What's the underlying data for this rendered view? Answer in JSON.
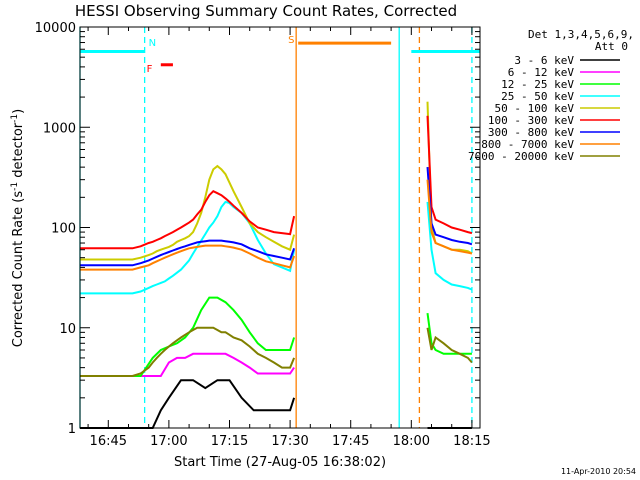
{
  "chart_data": {
    "type": "line",
    "title": "HESSI Observing Summary Count Rates, Corrected",
    "xlabel": "Start Time (27-Aug-05 16:38:02)",
    "ylabel": "Corrected Count Rate (s",
    "ylabel_exp1": "-1",
    "ylabel_mid": " detector",
    "ylabel_exp2": "-1",
    "ylabel_end": ")",
    "yscale": "log",
    "ylim": [
      1,
      10000
    ],
    "xlim_minutes": [
      0,
      99
    ],
    "x_ticks": [
      {
        "label": "16:45",
        "t": 7
      },
      {
        "label": "17:00",
        "t": 22
      },
      {
        "label": "17:15",
        "t": 37
      },
      {
        "label": "17:30",
        "t": 52
      },
      {
        "label": "17:45",
        "t": 67
      },
      {
        "label": "18:00",
        "t": 82
      },
      {
        "label": "18:15",
        "t": 97
      }
    ],
    "y_ticks": [
      {
        "label": "1",
        "v": 1
      },
      {
        "label": "10",
        "v": 10
      },
      {
        "label": "100",
        "v": 100
      },
      {
        "label": "1000",
        "v": 1000
      },
      {
        "label": "10000",
        "v": 10000
      }
    ],
    "legend_header": [
      "Det 1,3,4,5,6,9,",
      "Att 0"
    ],
    "footer_stamp": "11-Apr-2010 20:54",
    "gap_minutes": [
      56,
      85
    ],
    "series": [
      {
        "name": "3 - 6 keV",
        "color": "#000000",
        "x": [
          0,
          5,
          10,
          15,
          18,
          20,
          22,
          25,
          28,
          31,
          34,
          37,
          40,
          43,
          46,
          49,
          52,
          53,
          85,
          86,
          88,
          90,
          92,
          94,
          96,
          97
        ],
        "y": [
          1,
          1,
          1,
          1,
          1,
          1.5,
          2,
          3,
          3,
          2.5,
          3,
          3,
          2,
          1.5,
          1.5,
          1.5,
          1.5,
          2,
          1,
          1,
          1,
          1,
          1,
          1,
          1,
          1
        ]
      },
      {
        "name": "6 - 12 keV",
        "color": "#ff00ff",
        "x": [
          0,
          5,
          10,
          15,
          20,
          22,
          24,
          26,
          28,
          30,
          32,
          34,
          36,
          38,
          40,
          42,
          44,
          46,
          48,
          50,
          52,
          53
        ],
        "y": [
          3.3,
          3.3,
          3.3,
          3.3,
          3.3,
          4.5,
          5,
          5,
          5.5,
          5.5,
          5.5,
          5.5,
          5.5,
          5,
          4.5,
          4,
          3.5,
          3.5,
          3.5,
          3.5,
          3.5,
          4
        ]
      },
      {
        "name": "12 - 25 keV",
        "color": "#00ff00",
        "x": [
          0,
          5,
          10,
          15,
          18,
          20,
          22,
          24,
          26,
          28,
          30,
          32,
          34,
          36,
          38,
          40,
          42,
          44,
          46,
          48,
          50,
          52,
          53,
          85,
          86,
          87,
          88,
          90,
          92,
          94,
          96,
          97
        ],
        "y": [
          3.3,
          3.3,
          3.3,
          3.3,
          5,
          6,
          6.5,
          7,
          8,
          10,
          15,
          20,
          20,
          18,
          15,
          12,
          9,
          7,
          6,
          6,
          6,
          6,
          8,
          3,
          14,
          7,
          6,
          5.5,
          5.5,
          5.5,
          5.5,
          5.5
        ]
      },
      {
        "name": "25 - 50 keV",
        "color": "#00ffff",
        "x": [
          0,
          5,
          10,
          13,
          15,
          17,
          18,
          19,
          20,
          21,
          22,
          23,
          25,
          27,
          28,
          29,
          30,
          31,
          32,
          33,
          34,
          35,
          36,
          37,
          38,
          40,
          42,
          44,
          46,
          48,
          50,
          52,
          53,
          85,
          86,
          87,
          88,
          90,
          92,
          94,
          96,
          97
        ],
        "y": [
          22,
          22,
          22,
          22,
          23,
          25,
          26,
          27,
          28,
          29,
          31,
          33,
          38,
          47,
          55,
          64,
          74,
          86,
          100,
          112,
          130,
          160,
          180,
          175,
          160,
          140,
          110,
          75,
          55,
          43,
          40,
          37,
          60,
          10,
          180,
          60,
          35,
          30,
          27,
          26,
          25,
          24
        ]
      },
      {
        "name": "50 - 100 keV",
        "color": "#cccc00",
        "x": [
          0,
          5,
          10,
          13,
          15,
          17,
          18,
          19,
          20,
          21,
          22,
          23,
          24,
          25,
          26,
          27,
          28,
          29,
          30,
          31,
          32,
          33,
          34,
          35,
          36,
          37,
          38,
          40,
          42,
          44,
          46,
          48,
          50,
          52,
          53,
          85,
          86,
          87,
          88,
          90,
          92,
          94,
          96,
          97
        ],
        "y": [
          48,
          48,
          48,
          48,
          50,
          53,
          55,
          58,
          60,
          62,
          64,
          67,
          72,
          75,
          78,
          82,
          90,
          110,
          140,
          200,
          300,
          380,
          410,
          380,
          340,
          280,
          230,
          160,
          110,
          90,
          80,
          72,
          65,
          60,
          85,
          10,
          1800,
          100,
          70,
          65,
          60,
          60,
          58,
          55
        ]
      },
      {
        "name": "100 - 300 keV",
        "color": "#ff0000",
        "x": [
          0,
          5,
          10,
          13,
          15,
          17,
          18,
          19,
          20,
          21,
          22,
          23,
          24,
          25,
          26,
          27,
          28,
          29,
          30,
          31,
          32,
          33,
          34,
          35,
          36,
          37,
          38,
          40,
          42,
          44,
          46,
          48,
          50,
          52,
          53,
          85,
          86,
          87,
          88,
          90,
          92,
          94,
          96,
          97
        ],
        "y": [
          62,
          62,
          62,
          62,
          65,
          70,
          72,
          75,
          78,
          82,
          86,
          90,
          95,
          100,
          106,
          112,
          120,
          135,
          150,
          180,
          210,
          230,
          220,
          210,
          195,
          180,
          165,
          140,
          115,
          100,
          95,
          90,
          88,
          86,
          130,
          10,
          1300,
          160,
          120,
          110,
          100,
          95,
          90,
          88
        ]
      },
      {
        "name": "300 - 800 keV",
        "color": "#0000ff",
        "x": [
          0,
          5,
          10,
          13,
          15,
          17,
          18,
          19,
          20,
          21,
          22,
          23,
          24,
          25,
          26,
          27,
          28,
          29,
          30,
          31,
          32,
          33,
          34,
          35,
          36,
          37,
          38,
          40,
          42,
          44,
          46,
          48,
          50,
          52,
          53,
          85,
          86,
          87,
          88,
          90,
          92,
          94,
          96,
          97
        ],
        "y": [
          42,
          42,
          42,
          42,
          44,
          47,
          49,
          51,
          53,
          55,
          57,
          59,
          61,
          63,
          65,
          67,
          69,
          71,
          72,
          73,
          74,
          74,
          74,
          74,
          73,
          72,
          71,
          68,
          62,
          58,
          54,
          52,
          50,
          48,
          62,
          10,
          400,
          110,
          85,
          80,
          75,
          72,
          70,
          68
        ]
      },
      {
        "name": "800 - 7000 keV",
        "color": "#ff8000",
        "x": [
          0,
          5,
          10,
          13,
          15,
          17,
          18,
          19,
          20,
          21,
          22,
          23,
          24,
          25,
          26,
          27,
          28,
          29,
          30,
          31,
          32,
          33,
          34,
          35,
          36,
          37,
          38,
          40,
          42,
          44,
          46,
          48,
          50,
          52,
          53,
          85,
          86,
          87,
          88,
          90,
          92,
          94,
          96,
          97
        ],
        "y": [
          38,
          38,
          38,
          38,
          40,
          42,
          44,
          46,
          48,
          50,
          52,
          54,
          56,
          58,
          60,
          62,
          63,
          64,
          65,
          66,
          66,
          66,
          66,
          66,
          65,
          64,
          63,
          60,
          55,
          50,
          46,
          44,
          42,
          40,
          52,
          10,
          300,
          90,
          70,
          65,
          60,
          58,
          56,
          55
        ]
      },
      {
        "name": "7000 - 20000 keV",
        "color": "#808000",
        "x": [
          0,
          5,
          10,
          13,
          15,
          17,
          18,
          19,
          20,
          21,
          22,
          23,
          24,
          25,
          26,
          27,
          28,
          29,
          30,
          31,
          32,
          33,
          34,
          35,
          36,
          37,
          38,
          40,
          42,
          44,
          46,
          48,
          50,
          52,
          53,
          85,
          86,
          87,
          88,
          90,
          92,
          94,
          96,
          97
        ],
        "y": [
          3.3,
          3.3,
          3.3,
          3.3,
          3.5,
          4,
          4.5,
          5,
          5.5,
          6,
          6.5,
          7,
          7.5,
          8,
          8.5,
          9,
          9.5,
          10,
          10,
          10,
          10,
          10,
          9.5,
          9,
          9,
          8.5,
          8,
          7.5,
          6.5,
          5.5,
          5,
          4.5,
          4,
          4,
          5,
          3,
          10,
          6,
          8,
          7,
          6,
          5.5,
          5,
          4.5
        ]
      }
    ],
    "flags": [
      {
        "name": "saa",
        "label": "",
        "color": "#00ffff",
        "segments": [
          [
            0,
            16
          ],
          [
            82,
            99
          ]
        ],
        "value": 5700
      },
      {
        "name": "night",
        "label": "N",
        "color": "#00ffff",
        "segments": [],
        "value": 6500
      },
      {
        "name": "flare",
        "label": "F",
        "color": "#ff0000",
        "segments": [
          [
            20,
            23
          ]
        ],
        "value": 4200
      },
      {
        "name": "saa-s",
        "label": "S",
        "color": "#ff8000",
        "segments": [
          [
            54,
            77
          ]
        ],
        "value": 6900
      }
    ],
    "vlines": [
      {
        "t": 0,
        "color": "#00ffff",
        "style": "solid"
      },
      {
        "t": 16,
        "color": "#00ffff",
        "style": "dashed"
      },
      {
        "t": 53.5,
        "color": "#ff8000",
        "style": "solid"
      },
      {
        "t": 79,
        "color": "#00ffff",
        "style": "solid"
      },
      {
        "t": 84,
        "color": "#ff8000",
        "style": "dashed"
      },
      {
        "t": 97,
        "color": "#00ffff",
        "style": "dashed"
      }
    ]
  }
}
